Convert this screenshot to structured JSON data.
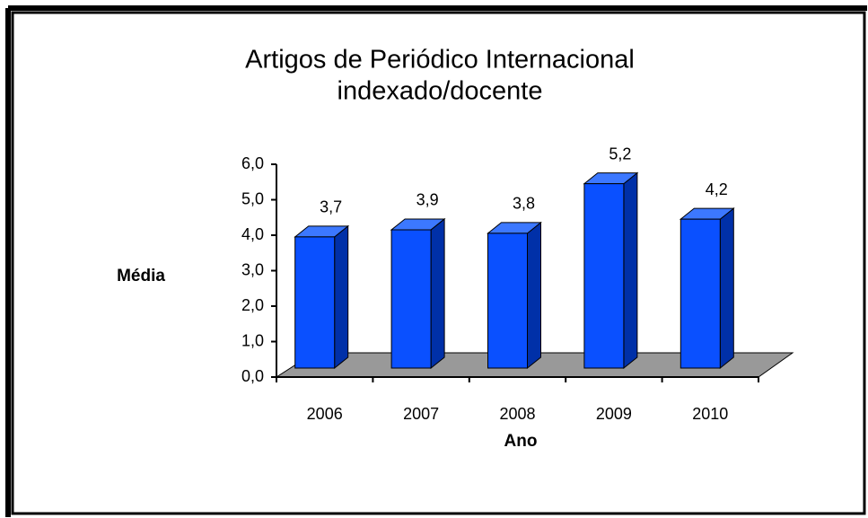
{
  "chart_data": {
    "type": "bar3d",
    "title": [
      "Artigos de Periódico Internacional",
      "indexado/docente"
    ],
    "y_label": "Média",
    "x_label": "Ano",
    "categories": [
      "2006",
      "2007",
      "2008",
      "2009",
      "2010"
    ],
    "values": [
      3.7,
      3.9,
      3.8,
      5.2,
      4.2
    ],
    "value_labels": [
      "3,7",
      "3,9",
      "3,8",
      "5,2",
      "4,2"
    ],
    "color": "#0a50ff",
    "ylim": [
      0,
      6
    ],
    "yticks": [
      {
        "value": 0,
        "label": "0,0"
      },
      {
        "value": 1,
        "label": "1,0"
      },
      {
        "value": 2,
        "label": "2,0"
      },
      {
        "value": 3,
        "label": "3,0"
      },
      {
        "value": 4,
        "label": "4,0"
      },
      {
        "value": 5,
        "label": "5,0"
      },
      {
        "value": 6,
        "label": "6,0"
      }
    ]
  }
}
